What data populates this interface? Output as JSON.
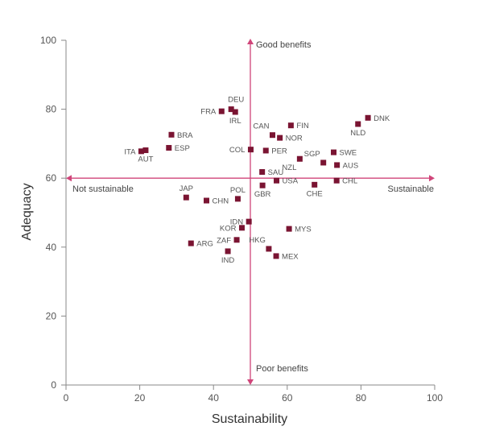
{
  "chart_data": {
    "type": "scatter",
    "xlabel": "Sustainability",
    "ylabel": "Adequacy",
    "xlim": [
      0,
      100
    ],
    "ylim": [
      0,
      100
    ],
    "xticks": [
      0,
      20,
      40,
      60,
      80,
      100
    ],
    "yticks": [
      0,
      20,
      40,
      60,
      80,
      100
    ],
    "grid": false,
    "crosshair": {
      "x": 50,
      "y": 60
    },
    "annotations": {
      "top": "Good benefits",
      "bottom": "Poor benefits",
      "left": "Not sustainable",
      "right": "Sustainable"
    },
    "colors": {
      "marker": "#7a1432",
      "crosshair": "#d0457a",
      "axis": "#888888"
    },
    "points": [
      {
        "label": "DNK",
        "x": 81.9,
        "y": 77.5,
        "pos": "r"
      },
      {
        "label": "NLD",
        "x": 79.2,
        "y": 75.7,
        "pos": "b"
      },
      {
        "label": "FRA",
        "x": 42.2,
        "y": 79.4,
        "pos": "l"
      },
      {
        "label": "DEU",
        "x": 44.8,
        "y": 80.0,
        "pos": "tr"
      },
      {
        "label": "IRL",
        "x": 45.9,
        "y": 79.2,
        "pos": "b"
      },
      {
        "label": "FIN",
        "x": 61.0,
        "y": 75.3,
        "pos": "r"
      },
      {
        "label": "CAN",
        "x": 56.0,
        "y": 72.5,
        "pos": "tl"
      },
      {
        "label": "NOR",
        "x": 58.0,
        "y": 71.7,
        "pos": "r"
      },
      {
        "label": "BRA",
        "x": 28.6,
        "y": 72.6,
        "pos": "r"
      },
      {
        "label": "ITA",
        "x": 20.4,
        "y": 67.8,
        "pos": "l"
      },
      {
        "label": "AUT",
        "x": 21.6,
        "y": 68.1,
        "pos": "b"
      },
      {
        "label": "ESP",
        "x": 27.9,
        "y": 68.8,
        "pos": "r"
      },
      {
        "label": "COL",
        "x": 50.1,
        "y": 68.3,
        "pos": "l"
      },
      {
        "label": "PER",
        "x": 54.2,
        "y": 68.0,
        "pos": "r"
      },
      {
        "label": "SWE",
        "x": 72.6,
        "y": 67.5,
        "pos": "r"
      },
      {
        "label": "SGP",
        "x": 69.8,
        "y": 64.5,
        "pos": "tl"
      },
      {
        "label": "NZL",
        "x": 63.4,
        "y": 65.6,
        "pos": "bl"
      },
      {
        "label": "AUS",
        "x": 73.5,
        "y": 63.8,
        "pos": "r"
      },
      {
        "label": "SAU",
        "x": 53.2,
        "y": 61.8,
        "pos": "r"
      },
      {
        "label": "USA",
        "x": 57.1,
        "y": 59.3,
        "pos": "r"
      },
      {
        "label": "GBR",
        "x": 53.3,
        "y": 57.9,
        "pos": "b"
      },
      {
        "label": "CHE",
        "x": 67.4,
        "y": 58.1,
        "pos": "b"
      },
      {
        "label": "CHL",
        "x": 73.4,
        "y": 59.3,
        "pos": "r"
      },
      {
        "label": "JAP",
        "x": 32.6,
        "y": 54.4,
        "pos": "t"
      },
      {
        "label": "CHN",
        "x": 38.1,
        "y": 53.5,
        "pos": "r"
      },
      {
        "label": "POL",
        "x": 46.6,
        "y": 54.0,
        "pos": "t"
      },
      {
        "label": "IDN",
        "x": 49.6,
        "y": 47.4,
        "pos": "l"
      },
      {
        "label": "KOR",
        "x": 47.7,
        "y": 45.6,
        "pos": "l"
      },
      {
        "label": "MYS",
        "x": 60.5,
        "y": 45.3,
        "pos": "r"
      },
      {
        "label": "ZAF",
        "x": 46.3,
        "y": 42.1,
        "pos": "l"
      },
      {
        "label": "ARG",
        "x": 33.9,
        "y": 41.1,
        "pos": "r"
      },
      {
        "label": "HKG",
        "x": 55.0,
        "y": 39.5,
        "pos": "tl"
      },
      {
        "label": "IND",
        "x": 43.9,
        "y": 38.8,
        "pos": "b"
      },
      {
        "label": "MEX",
        "x": 57.0,
        "y": 37.4,
        "pos": "r"
      }
    ]
  }
}
